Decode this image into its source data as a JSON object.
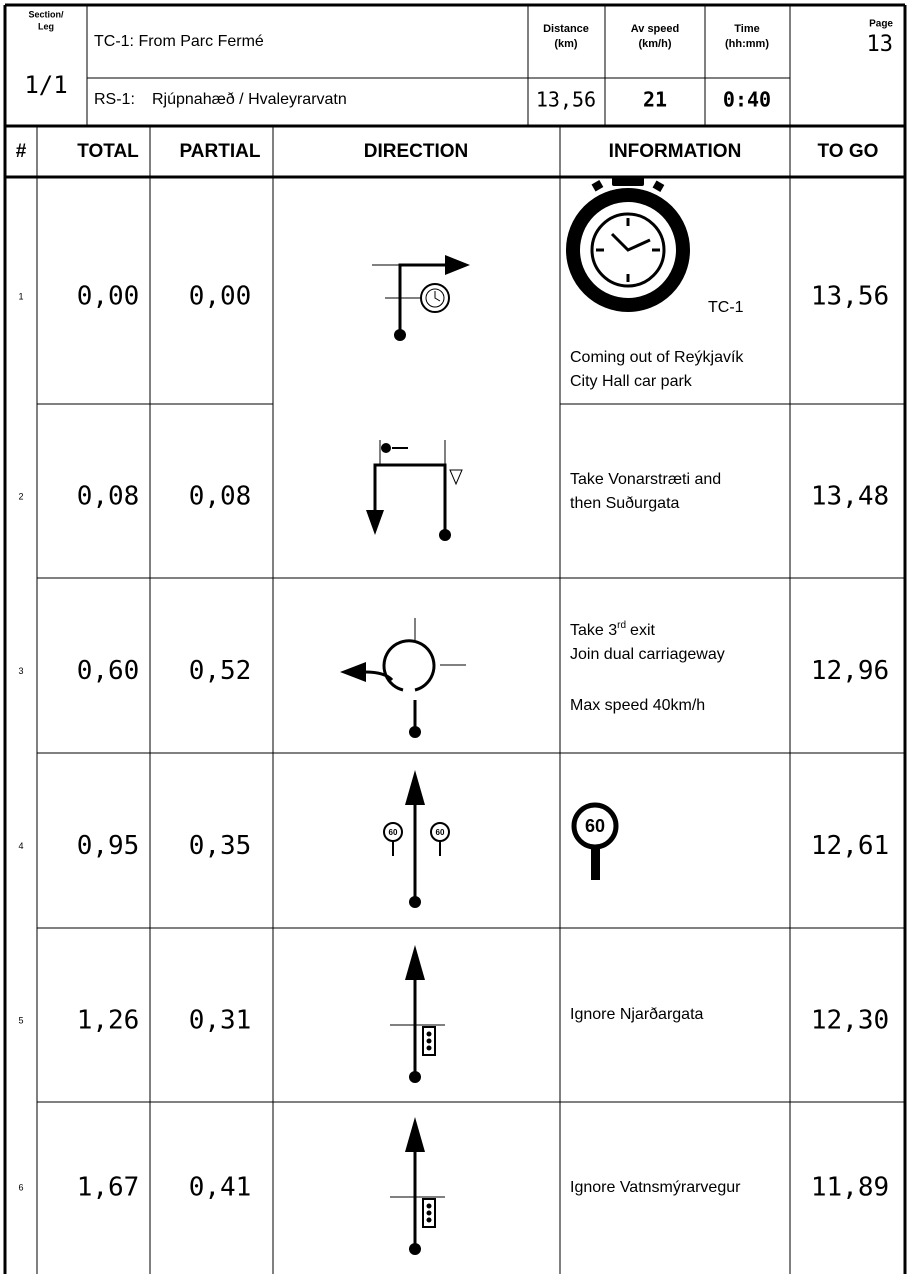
{
  "header": {
    "section_label": [
      "Section/",
      "Leg"
    ],
    "section": "1/1",
    "tc": "TC-1: From Parc Fermé",
    "rs_label": "RS-1:",
    "rs": "Rjúpnahæð / Hvaleyrarvatn",
    "distance_label": [
      "Distance",
      "(km)"
    ],
    "distance": "13,56",
    "speed_label": [
      "Av speed",
      "(km/h)"
    ],
    "speed": "21",
    "time_label": [
      "Time",
      "(hh:mm)"
    ],
    "time": "0:40",
    "page_label": "Page",
    "page": "13"
  },
  "columns": [
    "#",
    "TOTAL",
    "PARTIAL",
    "DIRECTION",
    "INFORMATION",
    "TO GO"
  ],
  "rows": [
    {
      "num": "1",
      "total": "0,00",
      "partial": "0,00",
      "to_go": "13,56",
      "icon_label": "TC-1",
      "info": [
        "Coming out of Reýkjavík",
        "City Hall car park"
      ]
    },
    {
      "num": "2",
      "total": "0,08",
      "partial": "0,08",
      "to_go": "13,48",
      "info": [
        "Take Vonarstræti and",
        "then Suðurgata"
      ]
    },
    {
      "num": "3",
      "total": "0,60",
      "partial": "0,52",
      "to_go": "12,96",
      "exit": {
        "text": "Take 3",
        "sup": "rd",
        "after": "exit"
      },
      "info": [
        "Join dual carriageway",
        "Max speed 40km/h"
      ]
    },
    {
      "num": "4",
      "total": "0,95",
      "partial": "0,35",
      "to_go": "12,61",
      "sign": "60"
    },
    {
      "num": "5",
      "total": "1,26",
      "partial": "0,31",
      "to_go": "12,30",
      "info": [
        "Ignore Njarðargata"
      ]
    },
    {
      "num": "6",
      "total": "1,67",
      "partial": "0,41",
      "to_go": "11,89",
      "info": [
        "Ignore Vatnsmýrarvegur"
      ]
    }
  ]
}
